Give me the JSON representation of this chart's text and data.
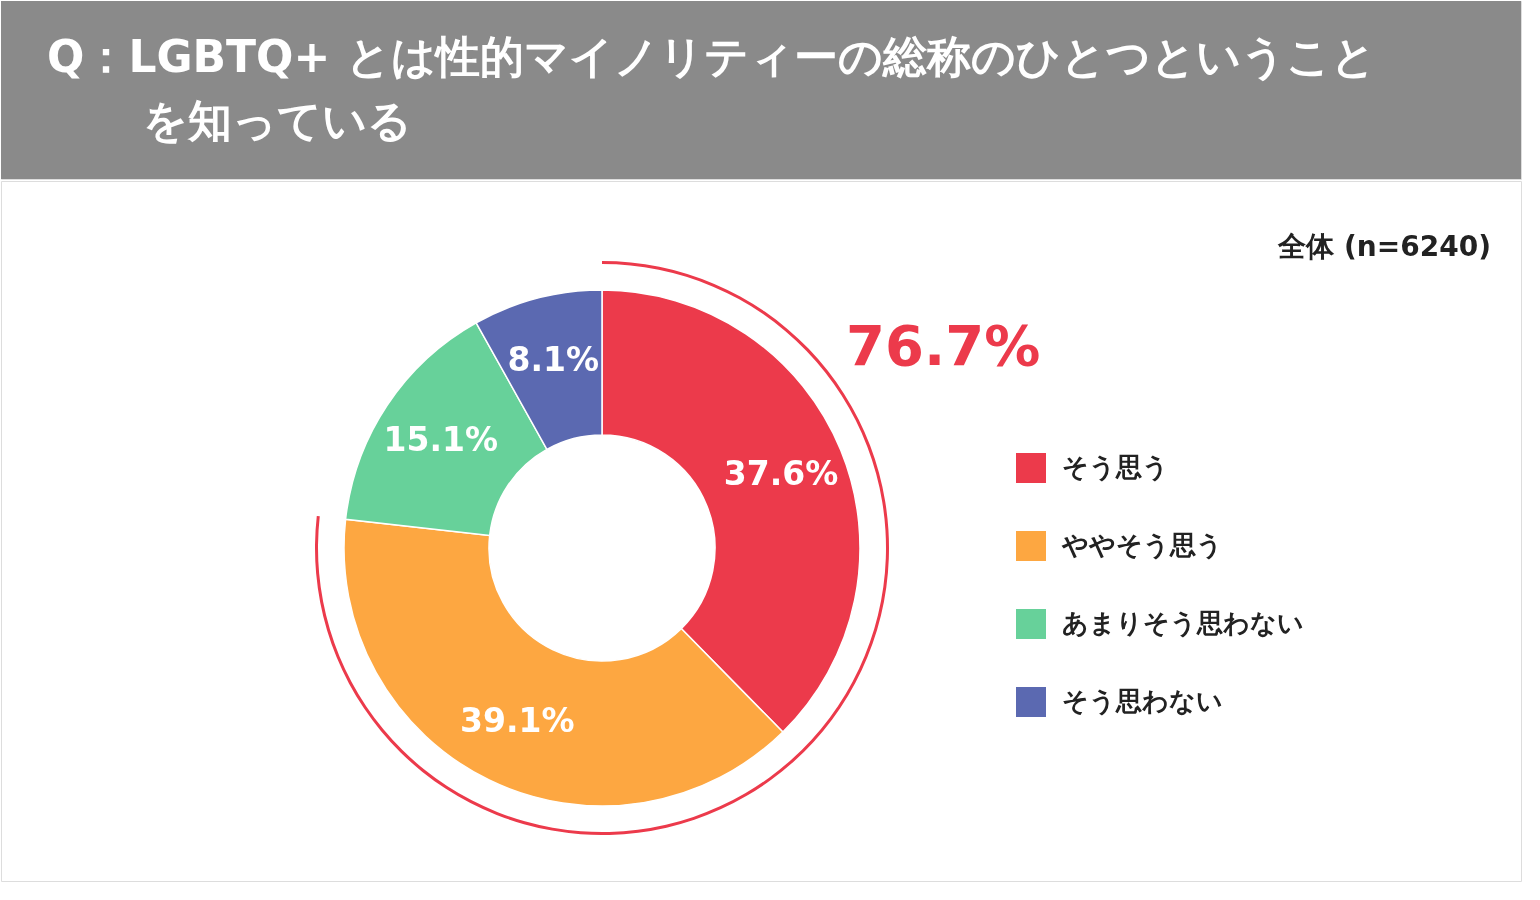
{
  "chart_data": {
    "type": "donut",
    "title": "Q：LGBTQ+ とは性的マイノリティーの総称のひとつということを知っている",
    "subtitle": "全体 (n=6240)",
    "categories": [
      "そう思う",
      "ややそう思う",
      "あまりそう思わない",
      "そう思わない"
    ],
    "values": [
      37.6,
      39.1,
      15.1,
      8.1
    ],
    "colors": [
      "#ec3a4b",
      "#fda741",
      "#67d19a",
      "#5b69b1"
    ],
    "value_labels": [
      "37.6%",
      "39.1%",
      "15.1%",
      "8.1%"
    ],
    "annotations": [
      "76.7%"
    ],
    "legend": "right"
  }
}
